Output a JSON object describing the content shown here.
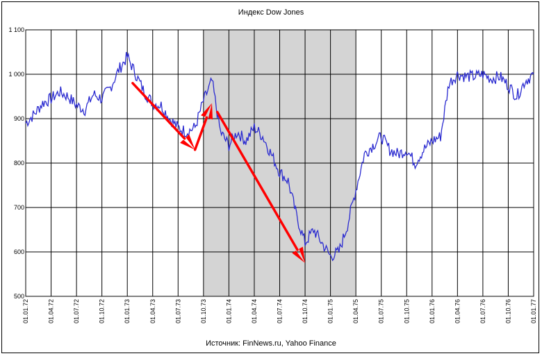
{
  "chart_data": {
    "type": "line",
    "title": "Индекс Dow Jones",
    "source": "Источник: FinNews.ru, Yahoo Finance",
    "ylim": [
      500,
      1100
    ],
    "yticks": [
      "500",
      "600",
      "700",
      "800",
      "900",
      "1 000",
      "1 100"
    ],
    "ytick_values": [
      500,
      600,
      700,
      800,
      900,
      1000,
      1100
    ],
    "xticks": [
      "01.01.72",
      "01.04.72",
      "01.07.72",
      "01.10.72",
      "01.01.73",
      "01.04.73",
      "01.07.73",
      "01.10.73",
      "01.01.74",
      "01.04.74",
      "01.07.74",
      "01.10.74",
      "01.01.75",
      "01.04.75",
      "01.07.75",
      "01.10.75",
      "01.01.76",
      "01.04.76",
      "01.07.76",
      "01.10.76",
      "01.01.77"
    ],
    "grid": true,
    "shaded_region": {
      "from": "01.10.73",
      "to": "01.04.75",
      "color": "#d4d4d4"
    },
    "series": [
      {
        "color": "#2a2ad0",
        "x": [
          "01.01.72",
          "01.02.72",
          "01.03.72",
          "01.04.72",
          "01.05.72",
          "01.06.72",
          "01.07.72",
          "01.08.72",
          "01.09.72",
          "01.10.72",
          "01.11.72",
          "01.12.72",
          "01.01.73",
          "01.02.73",
          "01.03.73",
          "01.04.73",
          "01.05.73",
          "01.06.73",
          "01.07.73",
          "01.08.73",
          "01.09.73",
          "01.10.73",
          "01.11.73",
          "01.12.73",
          "01.01.74",
          "01.02.74",
          "01.03.74",
          "01.04.74",
          "01.05.74",
          "01.06.74",
          "01.07.74",
          "01.08.74",
          "01.09.74",
          "01.10.74",
          "01.11.74",
          "01.12.74",
          "01.01.75",
          "01.02.75",
          "01.03.75",
          "01.04.75",
          "01.05.75",
          "01.06.75",
          "01.07.75",
          "01.08.75",
          "01.09.75",
          "01.10.75",
          "01.11.75",
          "01.12.75",
          "01.01.76",
          "01.02.76",
          "01.03.76",
          "01.04.76",
          "01.05.76",
          "01.06.76",
          "01.07.76",
          "01.08.76",
          "01.09.76",
          "01.10.76",
          "01.11.76",
          "01.12.76",
          "01.01.77"
        ],
        "y": [
          890,
          910,
          935,
          945,
          960,
          950,
          930,
          920,
          955,
          945,
          970,
          1010,
          1040,
          1000,
          960,
          935,
          930,
          900,
          880,
          870,
          880,
          940,
          985,
          870,
          840,
          870,
          850,
          880,
          860,
          820,
          780,
          760,
          680,
          620,
          650,
          620,
          590,
          600,
          660,
          740,
          820,
          840,
          860,
          830,
          820,
          830,
          800,
          830,
          850,
          860,
          980,
          1000,
          995,
          995,
          1000,
          990,
          995,
          975,
          950,
          985,
          1000
        ]
      }
    ],
    "arrows_color": "#ff0000"
  }
}
